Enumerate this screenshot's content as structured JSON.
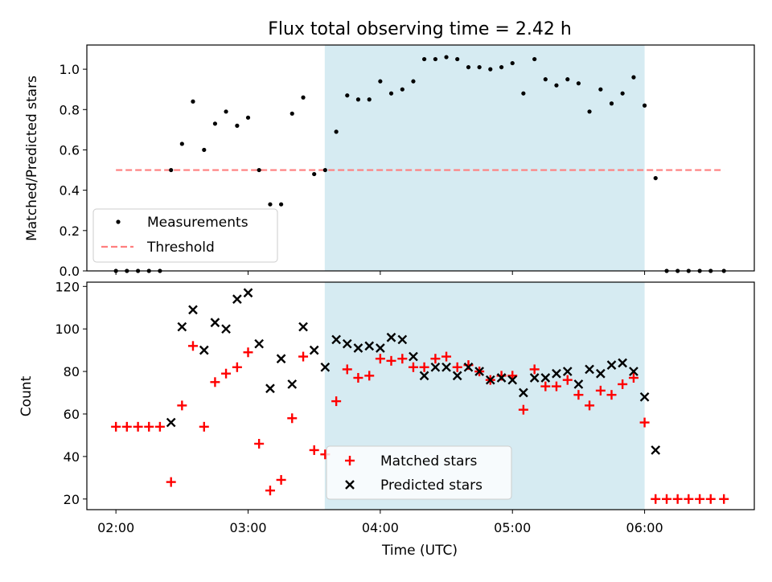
{
  "figure": {
    "title": "Flux total observing time = 2.42 h",
    "xlabel": "Time (UTC)",
    "x_ticks": [
      "02:00",
      "03:00",
      "04:00",
      "05:00",
      "06:00"
    ],
    "x_tick_hours": [
      2,
      3,
      4,
      5,
      6
    ],
    "xlim": [
      1.78,
      6.83
    ],
    "shaded_range": [
      3.58,
      6.0
    ],
    "colors": {
      "shade": "#add8e6",
      "threshold": "#ff7f7f",
      "matched": "#ff0000",
      "predicted": "#000000",
      "measurement": "#000000"
    }
  },
  "chart_data": [
    {
      "type": "scatter",
      "ylabel": "Matched/Predicted stars",
      "ylim": [
        0,
        1.12
      ],
      "y_ticks": [
        "0.0",
        "0.2",
        "0.4",
        "0.6",
        "0.8",
        "1.0"
      ],
      "y_tick_values": [
        0,
        0.2,
        0.4,
        0.6,
        0.8,
        1.0
      ],
      "legend": [
        "Measurements",
        "Threshold"
      ],
      "legend_position": "lower-left",
      "threshold": {
        "value": 0.5,
        "x_range": [
          2.0,
          6.6
        ]
      },
      "series": [
        {
          "name": "Measurements",
          "x": [
            2.0,
            2.083,
            2.167,
            2.25,
            2.333,
            2.417,
            2.5,
            2.583,
            2.667,
            2.75,
            2.833,
            2.917,
            3.0,
            3.083,
            3.167,
            3.25,
            3.333,
            3.417,
            3.5,
            3.583,
            3.667,
            3.75,
            3.833,
            3.917,
            4.0,
            4.083,
            4.167,
            4.25,
            4.333,
            4.417,
            4.5,
            4.583,
            4.667,
            4.75,
            4.833,
            4.917,
            5.0,
            5.083,
            5.167,
            5.25,
            5.333,
            5.417,
            5.5,
            5.583,
            5.667,
            5.75,
            5.833,
            5.917,
            6.0,
            6.083,
            6.167,
            6.25,
            6.333,
            6.417,
            6.5,
            6.6
          ],
          "y": [
            0,
            0,
            0,
            0,
            0,
            0.5,
            0.63,
            0.84,
            0.6,
            0.73,
            0.79,
            0.72,
            0.76,
            0.5,
            0.33,
            0.33,
            0.78,
            0.86,
            0.48,
            0.5,
            0.69,
            0.87,
            0.85,
            0.85,
            0.94,
            0.88,
            0.9,
            0.94,
            1.05,
            1.05,
            1.06,
            1.05,
            1.01,
            1.01,
            1.0,
            1.01,
            1.03,
            0.88,
            1.05,
            0.95,
            0.92,
            0.95,
            0.93,
            0.79,
            0.9,
            0.83,
            0.88,
            0.96,
            0.82,
            0.46,
            0,
            0,
            0,
            0,
            0,
            0
          ]
        }
      ]
    },
    {
      "type": "scatter",
      "ylabel": "Count",
      "ylim": [
        15,
        122
      ],
      "y_ticks": [
        "20",
        "40",
        "60",
        "80",
        "100",
        "120"
      ],
      "y_tick_values": [
        20,
        40,
        60,
        80,
        100,
        120
      ],
      "legend": [
        "Matched stars",
        "Predicted stars"
      ],
      "legend_position": "lower-center",
      "series": [
        {
          "name": "Matched stars",
          "x": [
            2.0,
            2.083,
            2.167,
            2.25,
            2.333,
            2.417,
            2.5,
            2.583,
            2.667,
            2.75,
            2.833,
            2.917,
            3.0,
            3.083,
            3.167,
            3.25,
            3.333,
            3.417,
            3.5,
            3.583,
            3.667,
            3.75,
            3.833,
            3.917,
            4.0,
            4.083,
            4.167,
            4.25,
            4.333,
            4.417,
            4.5,
            4.583,
            4.667,
            4.75,
            4.833,
            4.917,
            5.0,
            5.083,
            5.167,
            5.25,
            5.333,
            5.417,
            5.5,
            5.583,
            5.667,
            5.75,
            5.833,
            5.917,
            6.0,
            6.083,
            6.167,
            6.25,
            6.333,
            6.417,
            6.5,
            6.6
          ],
          "y": [
            54,
            54,
            54,
            54,
            54,
            28,
            64,
            92,
            54,
            75,
            79,
            82,
            89,
            46,
            24,
            29,
            58,
            87,
            43,
            41,
            66,
            81,
            77,
            78,
            86,
            85,
            86,
            82,
            82,
            86,
            87,
            82,
            83,
            80,
            76,
            78,
            78,
            62,
            81,
            73,
            73,
            76,
            69,
            64,
            71,
            69,
            74,
            77,
            56,
            20,
            20,
            20,
            20,
            20,
            20,
            20
          ]
        },
        {
          "name": "Predicted stars",
          "x": [
            2.417,
            2.5,
            2.583,
            2.667,
            2.75,
            2.833,
            2.917,
            3.0,
            3.083,
            3.167,
            3.25,
            3.333,
            3.417,
            3.5,
            3.583,
            3.667,
            3.75,
            3.833,
            3.917,
            4.0,
            4.083,
            4.167,
            4.25,
            4.333,
            4.417,
            4.5,
            4.583,
            4.667,
            4.75,
            4.833,
            4.917,
            5.0,
            5.083,
            5.167,
            5.25,
            5.333,
            5.417,
            5.5,
            5.583,
            5.667,
            5.75,
            5.833,
            5.917,
            6.0,
            6.083
          ],
          "y": [
            56,
            101,
            109,
            90,
            103,
            100,
            114,
            117,
            93,
            72,
            86,
            74,
            101,
            90,
            82,
            95,
            93,
            91,
            92,
            91,
            96,
            95,
            87,
            78,
            82,
            82,
            78,
            82,
            80,
            76,
            77,
            76,
            70,
            77,
            77,
            79,
            80,
            74,
            81,
            79,
            83,
            84,
            80,
            68,
            43
          ]
        }
      ]
    }
  ]
}
